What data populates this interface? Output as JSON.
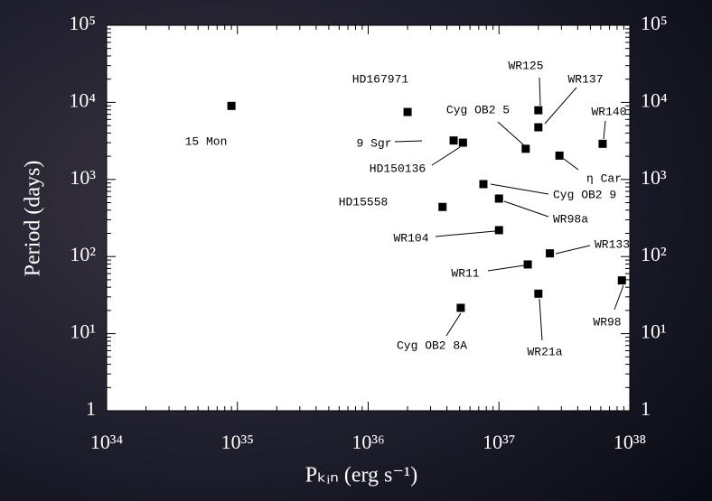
{
  "chart_data": {
    "type": "scatter",
    "x_label": "Pₖᵢₙ (erg s⁻¹)",
    "y_label": "Period (days)",
    "xlog": true,
    "ylog": true,
    "xlim": [
      1e+34,
      1e+38
    ],
    "ylim": [
      1,
      100000
    ],
    "xticks": [
      {
        "value": 1e+34,
        "label": "10³⁴"
      },
      {
        "value": 1e+35,
        "label": "10³⁵"
      },
      {
        "value": 1e+36,
        "label": "10³⁶"
      },
      {
        "value": 1e+37,
        "label": "10³⁷"
      },
      {
        "value": 1e+38,
        "label": "10³⁸"
      }
    ],
    "yticks": [
      1,
      {
        "value": 10,
        "label": "10¹"
      },
      {
        "value": 100,
        "label": "10²"
      },
      {
        "value": 1000,
        "label": "10³"
      },
      {
        "value": 10000,
        "label": "10⁴"
      },
      {
        "value": 100000,
        "label": "10⁵"
      }
    ],
    "series": [
      {
        "color": "#000000",
        "point_labels": [
          "15 Mon",
          "HD167971",
          "WR125",
          "WR137",
          "Cyg OB2 5",
          "WR140",
          "9 Sgr",
          "HD150136",
          "η Car",
          "Cyg OB2 9",
          "HD15558",
          "WR98a",
          "WR104",
          "WR133",
          "WR11",
          "WR98",
          "WR21a",
          "Cyg OB2 8A"
        ],
        "x": [
          9e+34,
          2e+36,
          2e+37,
          2e+37,
          1.6e+37,
          6.2e+37,
          4.5e+36,
          5.3e+36,
          2.9e+37,
          7.6e+36,
          3.7e+36,
          1e+37,
          1e+37,
          2.45e+37,
          1.66e+37,
          8.7e+37,
          2e+37,
          5.1e+36
        ],
        "values": [
          9000,
          7500,
          7900,
          4750,
          2500,
          2900,
          3200,
          3000,
          2040,
          870,
          440,
          565,
          220,
          110,
          79,
          49,
          33,
          21.6
        ]
      }
    ]
  }
}
